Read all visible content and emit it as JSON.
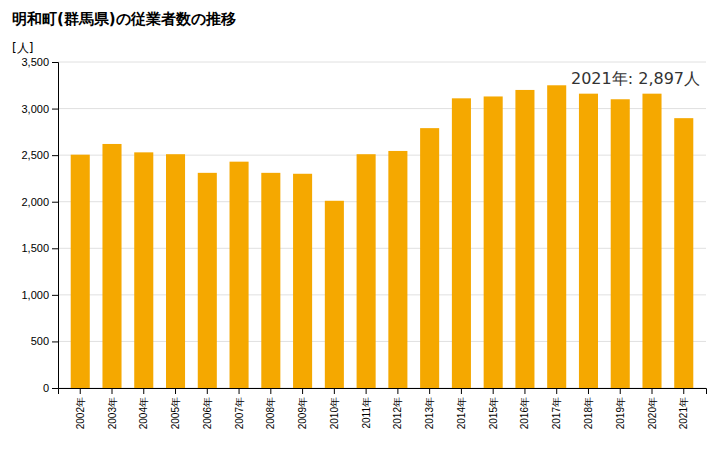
{
  "chart_data": {
    "type": "bar",
    "title": "明和町(群馬県)の従業者数の推移",
    "ylabel": "[人]",
    "annotation": "2021年: 2,897人",
    "categories": [
      "2002年",
      "2003年",
      "2004年",
      "2005年",
      "2006年",
      "2007年",
      "2008年",
      "2009年",
      "2010年",
      "2011年",
      "2012年",
      "2013年",
      "2014年",
      "2015年",
      "2016年",
      "2017年",
      "2018年",
      "2019年",
      "2020年",
      "2021年"
    ],
    "values": [
      2505,
      2620,
      2530,
      2510,
      2310,
      2430,
      2310,
      2300,
      2010,
      2510,
      2545,
      2790,
      3110,
      3130,
      3200,
      3250,
      3160,
      3100,
      3160,
      2897
    ],
    "color": "#F5A800",
    "ylim": [
      0,
      3500
    ],
    "yticks": [
      0,
      500,
      {
        "value": 1000,
        "label": "1,000"
      },
      {
        "value": 1500,
        "label": "1,500"
      },
      {
        "value": 2000,
        "label": "2,000"
      },
      {
        "value": 2500,
        "label": "2,500"
      },
      {
        "value": 3000,
        "label": "3,000"
      },
      {
        "value": 3500,
        "label": "3,500"
      }
    ],
    "grid": true
  }
}
